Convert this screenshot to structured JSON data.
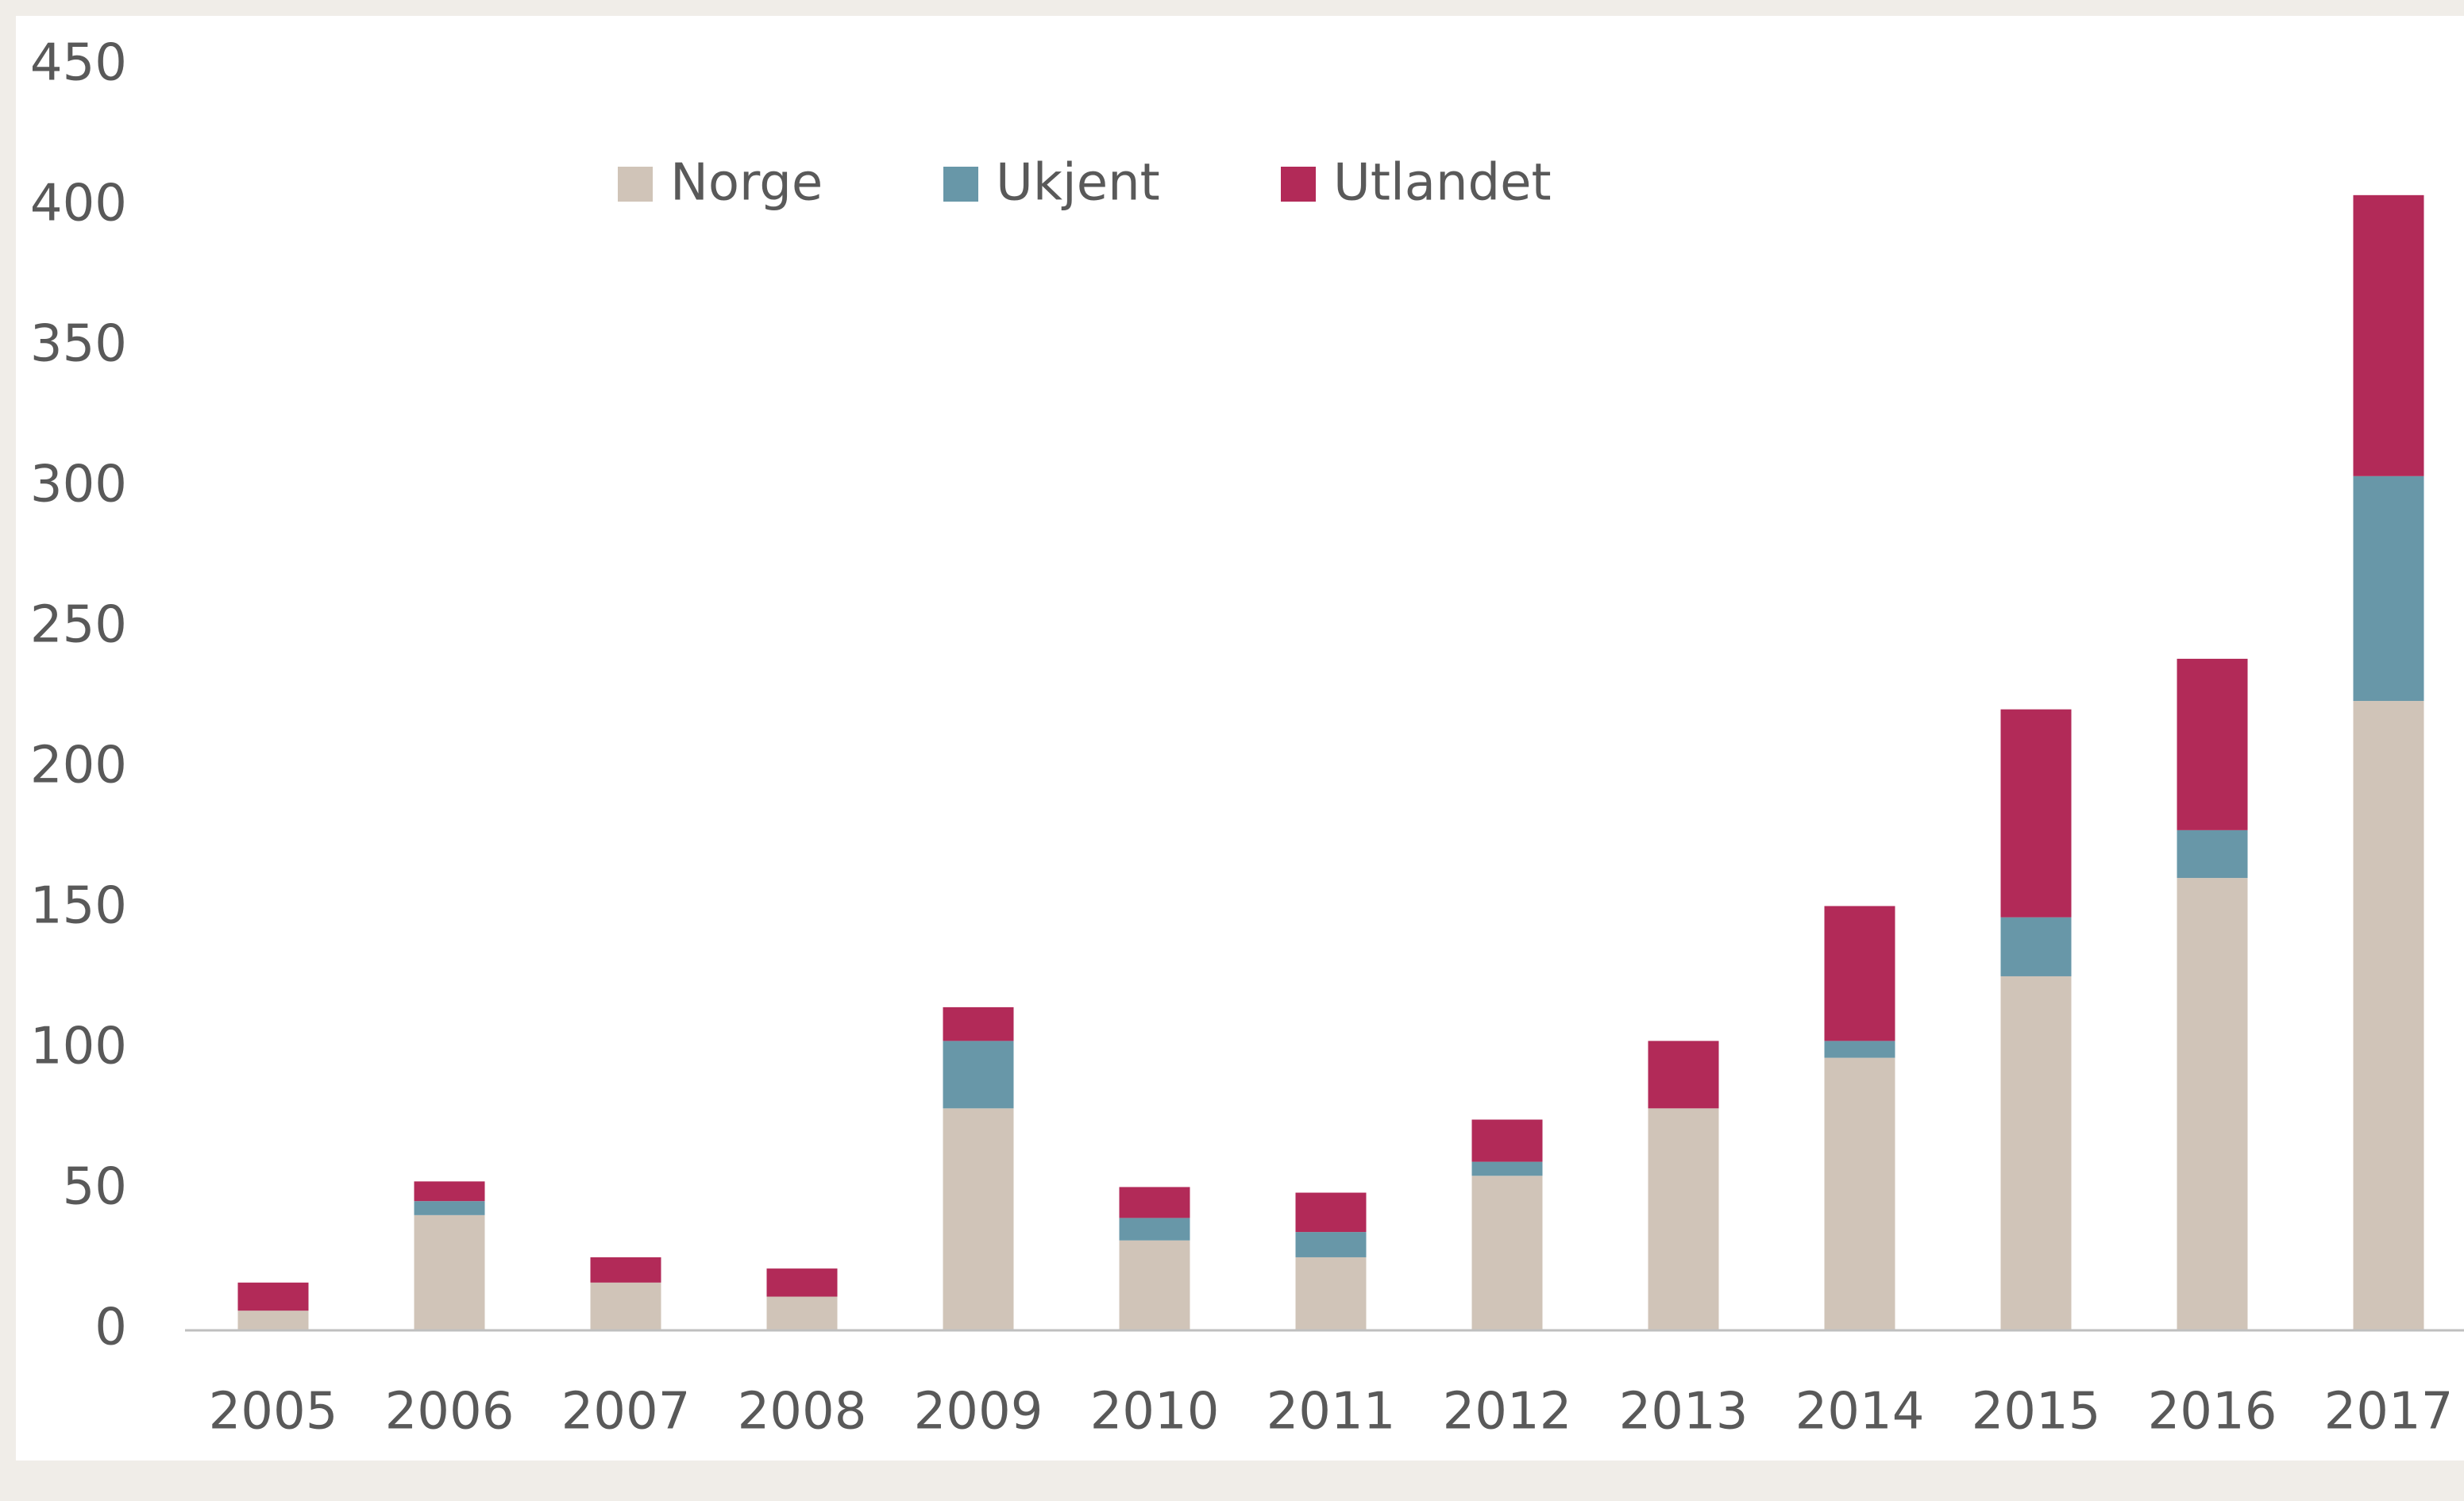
{
  "chart_data": {
    "type": "stacked_bar",
    "categories": [
      "2005",
      "2006",
      "2007",
      "2008",
      "2009",
      "2010",
      "2011",
      "2012",
      "2013",
      "2014",
      "2015",
      "2016",
      "2017"
    ],
    "series": [
      {
        "name": "Norge",
        "color": "#d0c4b8",
        "values": [
          7,
          41,
          17,
          12,
          79,
          32,
          26,
          55,
          79,
          97,
          126,
          161,
          224
        ]
      },
      {
        "name": "Ukjent",
        "color": "#6897a8",
        "values": [
          0,
          5,
          0,
          0,
          24,
          8,
          9,
          5,
          0,
          6,
          21,
          17,
          80
        ]
      },
      {
        "name": "Utlandet",
        "color": "#b22a58",
        "values": [
          10,
          7,
          9,
          10,
          12,
          11,
          14,
          15,
          24,
          48,
          74,
          61,
          100
        ]
      }
    ],
    "ylim": [
      0,
      450
    ],
    "yticks": [
      0,
      50,
      100,
      150,
      200,
      250,
      300,
      350,
      400,
      450
    ],
    "grid": false,
    "legend": "top"
  }
}
